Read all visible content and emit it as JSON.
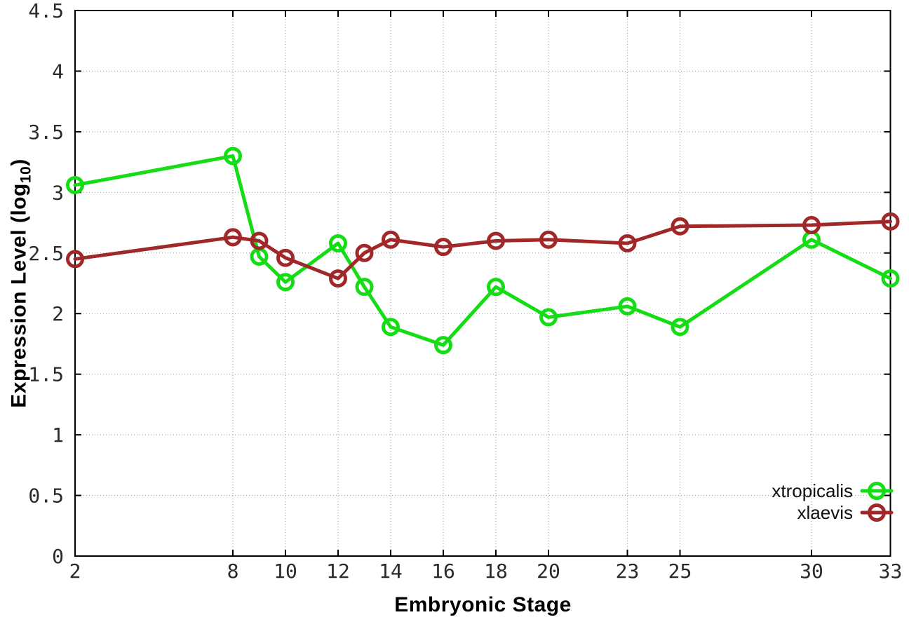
{
  "chart_data": {
    "type": "line",
    "title": "",
    "xlabel": "Embryonic Stage",
    "ylabel": "Expression Level (log10)",
    "ylabel_parts": {
      "pre": "Expression Level (log",
      "sub": "10",
      "post": ")"
    },
    "x": [
      2,
      8,
      9,
      10,
      12,
      13,
      14,
      16,
      18,
      20,
      23,
      25,
      30,
      33
    ],
    "xticks": [
      "2",
      "8",
      "10",
      "12",
      "14",
      "16",
      "18",
      "20",
      "23",
      "25",
      "30",
      "33"
    ],
    "yticks": [
      "0",
      "0.5",
      "1",
      "1.5",
      "2",
      "2.5",
      "3",
      "3.5",
      "4",
      "4.5"
    ],
    "xlim": [
      2,
      33
    ],
    "ylim": [
      0,
      4.5
    ],
    "grid": true,
    "legend_position": "bottom-right",
    "axis_color": "#000000",
    "grid_color": "#999999",
    "tick_label_color": "#2a2a2a",
    "series": [
      {
        "name": "xtropicalis",
        "color": "#15dd15",
        "marker": "open-circle",
        "values": [
          3.06,
          3.3,
          2.47,
          2.26,
          2.58,
          2.22,
          1.89,
          1.74,
          2.22,
          1.97,
          2.06,
          1.89,
          2.61,
          2.29
        ]
      },
      {
        "name": "xlaevis",
        "color": "#a02828",
        "marker": "open-circle",
        "values": [
          2.45,
          2.63,
          2.6,
          2.46,
          2.29,
          2.5,
          2.61,
          2.55,
          2.6,
          2.61,
          2.58,
          2.72,
          2.73,
          2.76
        ]
      }
    ]
  }
}
